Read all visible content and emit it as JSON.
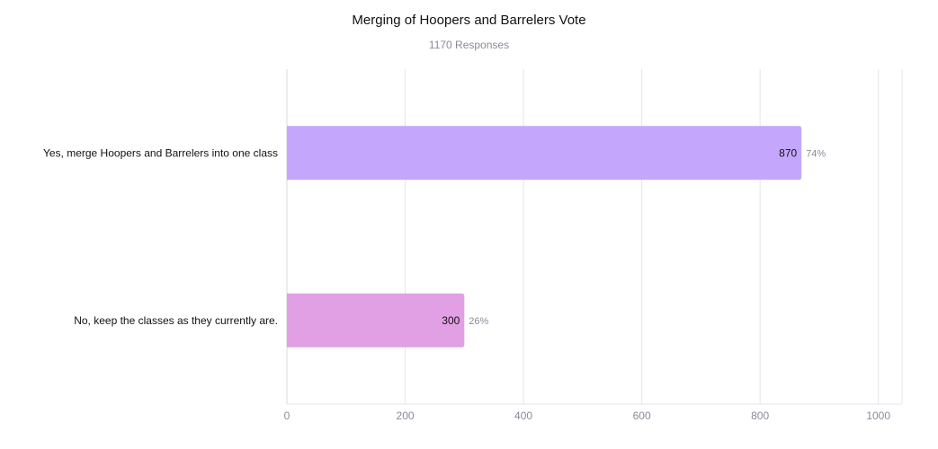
{
  "chart_data": {
    "type": "bar",
    "orientation": "horizontal",
    "title": "Merging of Hoopers and Barrelers Vote",
    "subtitle": "1170 Responses",
    "categories": [
      "Yes, merge Hoopers and Barrelers into one class",
      "No, keep the classes as they currently are."
    ],
    "values": [
      870,
      300
    ],
    "percent_labels": [
      "74%",
      "26%"
    ],
    "colors": [
      "#c4a7fc",
      "#e1a0e3"
    ],
    "xlim": [
      0,
      1040
    ],
    "xticks": [
      0,
      200,
      400,
      600,
      800,
      1000
    ],
    "xtick_labels": [
      "0",
      "200",
      "400",
      "600",
      "800",
      "1000"
    ],
    "grid": true,
    "legend": "none"
  }
}
